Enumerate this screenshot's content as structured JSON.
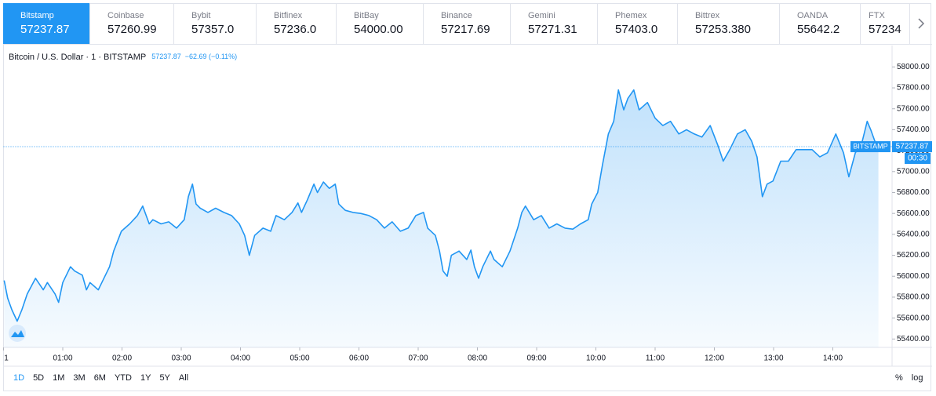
{
  "tabs": [
    {
      "name": "Bitstamp",
      "price": "57237.87"
    },
    {
      "name": "Coinbase",
      "price": "57260.99"
    },
    {
      "name": "Bybit",
      "price": "57357.0"
    },
    {
      "name": "Bitfinex",
      "price": "57236.0"
    },
    {
      "name": "BitBay",
      "price": "54000.00"
    },
    {
      "name": "Binance",
      "price": "57217.69"
    },
    {
      "name": "Gemini",
      "price": "57271.31"
    },
    {
      "name": "Phemex",
      "price": "57403.0"
    },
    {
      "name": "Bittrex",
      "price": "57253.380"
    },
    {
      "name": "OANDA",
      "price": "55642.2"
    },
    {
      "name": "FTX",
      "price": "57234"
    }
  ],
  "chart_data": {
    "type": "line",
    "title": "Bitcoin / U.S. Dollar · 1 · BITSTAMP",
    "change": "−62.69 (−0.11%)",
    "price_tag": "BITSTAMP",
    "countdown": "00:30",
    "color": "#2196f3",
    "x": [
      0.01,
      0.07,
      0.14,
      0.23,
      0.31,
      0.4,
      0.54,
      0.67,
      0.74,
      0.87,
      0.93,
      1.0,
      1.13,
      1.2,
      1.33,
      1.4,
      1.46,
      1.6,
      1.66,
      1.79,
      1.86,
      1.99,
      2.13,
      2.26,
      2.35,
      2.46,
      2.52,
      2.66,
      2.79,
      2.92,
      3.05,
      3.12,
      3.19,
      3.25,
      3.32,
      3.45,
      3.58,
      3.72,
      3.85,
      3.98,
      4.07,
      4.15,
      4.24,
      4.38,
      4.51,
      4.6,
      4.74,
      4.87,
      4.97,
      5.03,
      5.13,
      5.24,
      5.3,
      5.4,
      5.5,
      5.6,
      5.66,
      5.77,
      5.9,
      6.03,
      6.17,
      6.3,
      6.43,
      6.56,
      6.7,
      6.83,
      6.96,
      7.09,
      7.16,
      7.29,
      7.36,
      7.42,
      7.49,
      7.56,
      7.69,
      7.82,
      7.89,
      7.95,
      8.02,
      8.09,
      8.22,
      8.28,
      8.42,
      8.55,
      8.68,
      8.75,
      8.81,
      8.95,
      9.08,
      9.21,
      9.34,
      9.48,
      9.61,
      9.74,
      9.87,
      9.93,
      10.03,
      10.11,
      10.21,
      10.3,
      10.38,
      10.47,
      10.54,
      10.64,
      10.73,
      10.87,
      11.0,
      11.13,
      11.26,
      11.4,
      11.53,
      11.66,
      11.79,
      11.93,
      12.06,
      12.15,
      12.26,
      12.39,
      12.52,
      12.63,
      12.72,
      12.81,
      12.89,
      12.99,
      13.12,
      13.25,
      13.38,
      13.52,
      13.65,
      13.78,
      13.91,
      14.05,
      14.18,
      14.27,
      14.38,
      14.48,
      14.58,
      14.64,
      14.71,
      14.77
    ],
    "values": [
      55960,
      55790,
      55680,
      55570,
      55680,
      55830,
      55980,
      55870,
      55940,
      55830,
      55750,
      55940,
      56090,
      56050,
      56010,
      55870,
      55940,
      55870,
      55940,
      56090,
      56240,
      56430,
      56500,
      56580,
      56670,
      56500,
      56540,
      56500,
      56520,
      56460,
      56540,
      56760,
      56880,
      56690,
      56650,
      56610,
      56650,
      56610,
      56580,
      56500,
      56390,
      56200,
      56390,
      56460,
      56430,
      56580,
      56540,
      56610,
      56700,
      56610,
      56730,
      56880,
      56800,
      56900,
      56840,
      56880,
      56690,
      56630,
      56610,
      56600,
      56580,
      56540,
      56460,
      56520,
      56430,
      56460,
      56580,
      56610,
      56460,
      56390,
      56240,
      56050,
      56000,
      56200,
      56240,
      56160,
      56250,
      56090,
      55980,
      56090,
      56240,
      56160,
      56090,
      56240,
      56460,
      56610,
      56670,
      56540,
      56580,
      56460,
      56500,
      56460,
      56450,
      56500,
      56540,
      56690,
      56800,
      57060,
      57360,
      57480,
      57780,
      57590,
      57700,
      57780,
      57590,
      57660,
      57510,
      57440,
      57480,
      57360,
      57400,
      57360,
      57330,
      57440,
      57250,
      57100,
      57210,
      57360,
      57400,
      57290,
      57140,
      56760,
      56880,
      56910,
      57100,
      57100,
      57210,
      57210,
      57210,
      57140,
      57180,
      57360,
      57180,
      56950,
      57180,
      57250,
      57480,
      57400,
      57290,
      57237.87
    ],
    "xlim": [
      0,
      15
    ],
    "ylim": [
      55320,
      58190
    ],
    "xticks": [
      {
        "value": 0,
        "label": "1"
      },
      {
        "value": 1,
        "label": "01:00"
      },
      {
        "value": 2,
        "label": "02:00"
      },
      {
        "value": 3,
        "label": "03:00"
      },
      {
        "value": 4,
        "label": "04:00"
      },
      {
        "value": 5,
        "label": "05:00"
      },
      {
        "value": 6,
        "label": "06:00"
      },
      {
        "value": 7,
        "label": "07:00"
      },
      {
        "value": 8,
        "label": "08:00"
      },
      {
        "value": 9,
        "label": "09:00"
      },
      {
        "value": 10,
        "label": "10:00"
      },
      {
        "value": 11,
        "label": "11:00"
      },
      {
        "value": 12,
        "label": "12:00"
      },
      {
        "value": 13,
        "label": "13:00"
      },
      {
        "value": 14,
        "label": "14:00"
      }
    ],
    "yticks": [
      {
        "value": 55400,
        "label": "55400.00"
      },
      {
        "value": 55600,
        "label": "55600.00"
      },
      {
        "value": 55800,
        "label": "55800.00"
      },
      {
        "value": 56000,
        "label": "56000.00"
      },
      {
        "value": 56200,
        "label": "56200.00"
      },
      {
        "value": 56400,
        "label": "56400.00"
      },
      {
        "value": 56600,
        "label": "56600.00"
      },
      {
        "value": 56800,
        "label": "56800.00"
      },
      {
        "value": 57000,
        "label": "57000.00"
      },
      {
        "value": 57200,
        "label": "57200.00"
      },
      {
        "value": 57400,
        "label": "57400.00"
      },
      {
        "value": 57600,
        "label": "57600.00"
      },
      {
        "value": 57800,
        "label": "57800.00"
      },
      {
        "value": 58000,
        "label": "58000.00"
      }
    ]
  },
  "range_buttons": [
    "1D",
    "5D",
    "1M",
    "3M",
    "6M",
    "YTD",
    "1Y",
    "5Y",
    "All"
  ],
  "scale_options": [
    "%",
    "log"
  ]
}
